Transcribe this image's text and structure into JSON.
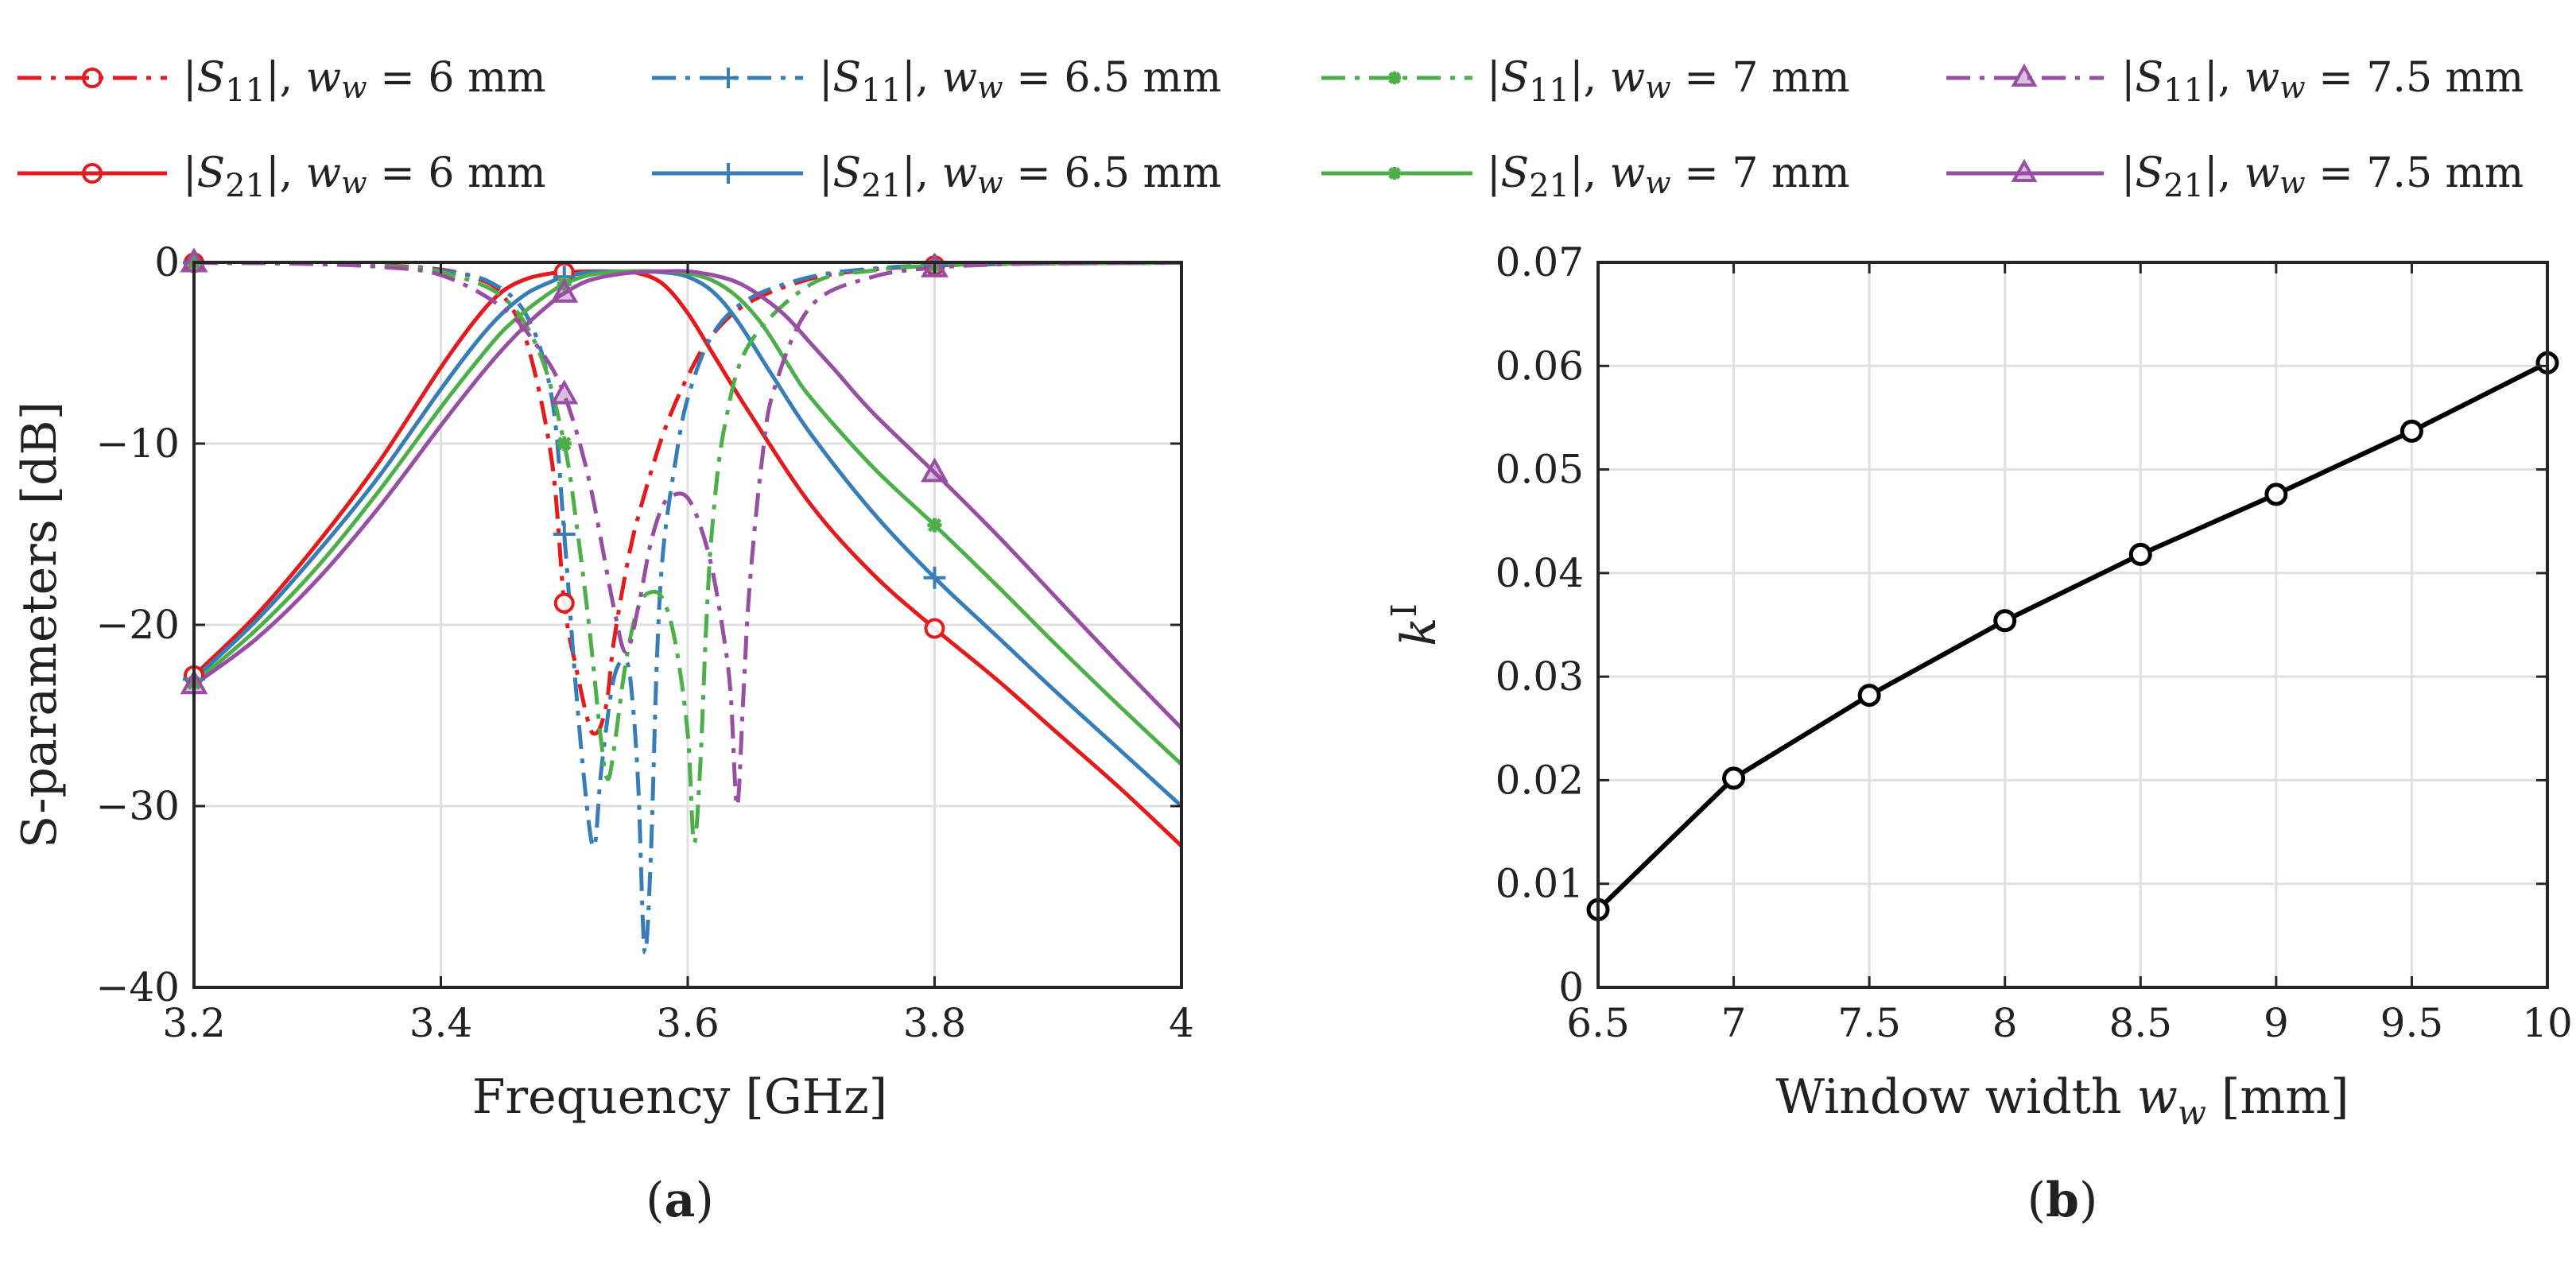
{
  "colors": {
    "w6": "#e41a1c",
    "w6_5": "#377eb8",
    "w7": "#4daf4a",
    "w7_5": "#984ea3",
    "black": "#000000",
    "axis": "#262626",
    "grid": "#e0e0e0"
  },
  "legend": {
    "s11_w6": "|S11|, ww = 6 mm",
    "s11_w6_5": "|S11|, ww = 6.5 mm",
    "s11_w7": "|S11|, ww = 7 mm",
    "s11_w7_5": "|S11|, ww = 7.5 mm",
    "s21_w6": "|S21|, ww = 6 mm",
    "s21_w6_5": "|S21|, ww = 6.5 mm",
    "s21_w7": "|S21|, ww = 7 mm",
    "s21_w7_5": "|S21|, ww = 7.5 mm"
  },
  "legend_parts": {
    "pipe": "|",
    "S": "S",
    "sub11": "11",
    "sub21": "21",
    "sep": "|, ",
    "w": "w",
    "wsub": "w",
    "eq": " = ",
    "unit": " mm",
    "v6": "6",
    "v6_5": "6.5",
    "v7": "7",
    "v7_5": "7.5"
  },
  "captions": {
    "a_open": "(",
    "a_letter": "a",
    "a_close": ")",
    "b_open": "(",
    "b_letter": "b",
    "b_close": ")"
  },
  "chart_data": [
    {
      "id": "a",
      "type": "line",
      "xlabel": "Frequency [GHz]",
      "ylabel": "S-parameters [dB]",
      "xlim": [
        3.2,
        4.0
      ],
      "ylim": [
        -40,
        0
      ],
      "xticks": [
        3.2,
        3.4,
        3.6,
        3.8,
        4.0
      ],
      "xtick_labels": [
        "3.2",
        "3.4",
        "3.6",
        "3.8",
        "4"
      ],
      "yticks": [
        -40,
        -30,
        -20,
        -10,
        0
      ],
      "ytick_labels": [
        "−40",
        "−30",
        "−20",
        "−10",
        "0"
      ],
      "grid": true,
      "legend_position": "top",
      "series": [
        {
          "name": "|S11|, ww = 6 mm",
          "width_mm": 6,
          "param": "S11",
          "style": "dashdot",
          "marker": "circle",
          "color": "#e41a1c",
          "x": [
            3.2,
            3.25,
            3.3,
            3.35,
            3.4,
            3.43,
            3.45,
            3.47,
            3.49,
            3.5,
            3.51,
            3.52,
            3.525,
            3.53,
            3.535,
            3.54,
            3.55,
            3.56,
            3.58,
            3.6,
            3.62,
            3.65,
            3.7,
            3.75,
            3.8,
            3.85,
            3.9,
            4.0
          ],
          "y": [
            -0.02,
            -0.04,
            -0.07,
            -0.15,
            -0.4,
            -0.9,
            -1.8,
            -4.5,
            -11,
            -18.8,
            -22.5,
            -25.5,
            -26,
            -25.5,
            -24,
            -21,
            -17,
            -14,
            -9.5,
            -6.3,
            -4,
            -2.2,
            -0.9,
            -0.4,
            -0.18,
            -0.1,
            -0.06,
            -0.02
          ],
          "marker_x": [
            3.2,
            3.5,
            3.8
          ]
        },
        {
          "name": "|S21|, ww = 6 mm",
          "width_mm": 6,
          "param": "S21",
          "style": "solid",
          "marker": "circle",
          "color": "#e41a1c",
          "x": [
            3.2,
            3.25,
            3.3,
            3.35,
            3.4,
            3.43,
            3.45,
            3.47,
            3.49,
            3.5,
            3.52,
            3.54,
            3.56,
            3.58,
            3.6,
            3.62,
            3.65,
            3.7,
            3.75,
            3.8,
            3.85,
            3.9,
            3.95,
            4.0
          ],
          "y": [
            -22.8,
            -19.5,
            -15.5,
            -11,
            -5.8,
            -3,
            -1.6,
            -0.9,
            -0.6,
            -0.55,
            -0.5,
            -0.5,
            -0.6,
            -1.2,
            -2.8,
            -5,
            -8.3,
            -13.4,
            -17.2,
            -20.2,
            -23,
            -26,
            -29,
            -32.2
          ],
          "marker_x": [
            3.2,
            3.5,
            3.8
          ]
        },
        {
          "name": "|S11|, ww = 6.5 mm",
          "width_mm": 6.5,
          "param": "S11",
          "style": "dashdot",
          "marker": "plus",
          "color": "#377eb8",
          "x": [
            3.2,
            3.25,
            3.3,
            3.35,
            3.4,
            3.44,
            3.47,
            3.49,
            3.5,
            3.51,
            3.52,
            3.525,
            3.53,
            3.54,
            3.55,
            3.555,
            3.56,
            3.565,
            3.57,
            3.575,
            3.58,
            3.59,
            3.6,
            3.62,
            3.65,
            3.7,
            3.75,
            3.8,
            3.85,
            3.9,
            4.0
          ],
          "y": [
            -0.02,
            -0.04,
            -0.08,
            -0.18,
            -0.45,
            -1.1,
            -3,
            -7.5,
            -15,
            -24,
            -31,
            -32,
            -28,
            -23,
            -22,
            -24,
            -29,
            -38,
            -33,
            -22,
            -16,
            -11,
            -7.5,
            -4,
            -2,
            -0.8,
            -0.35,
            -0.15,
            -0.08,
            -0.05,
            -0.02
          ],
          "marker_x": [
            3.2,
            3.5,
            3.8
          ]
        },
        {
          "name": "|S21|, ww = 6.5 mm",
          "width_mm": 6.5,
          "param": "S21",
          "style": "solid",
          "marker": "plus",
          "color": "#377eb8",
          "x": [
            3.2,
            3.25,
            3.3,
            3.35,
            3.4,
            3.43,
            3.45,
            3.47,
            3.49,
            3.5,
            3.52,
            3.55,
            3.58,
            3.6,
            3.62,
            3.64,
            3.67,
            3.7,
            3.75,
            3.8,
            3.85,
            3.9,
            3.95,
            4.0
          ],
          "y": [
            -23,
            -19.8,
            -16,
            -11.8,
            -7,
            -4.3,
            -2.8,
            -1.7,
            -1.05,
            -0.8,
            -0.55,
            -0.5,
            -0.55,
            -0.8,
            -1.6,
            -3.2,
            -6.4,
            -9.5,
            -13.8,
            -17.4,
            -20.6,
            -23.8,
            -26.9,
            -30
          ],
          "marker_x": [
            3.2,
            3.5,
            3.8
          ]
        },
        {
          "name": "|S11|, ww = 7 mm",
          "width_mm": 7,
          "param": "S11",
          "style": "dashdot",
          "marker": "asterisk",
          "color": "#4daf4a",
          "x": [
            3.2,
            3.25,
            3.3,
            3.35,
            3.4,
            3.45,
            3.48,
            3.5,
            3.51,
            3.52,
            3.53,
            3.535,
            3.54,
            3.55,
            3.56,
            3.57,
            3.58,
            3.59,
            3.6,
            3.605,
            3.61,
            3.615,
            3.62,
            3.63,
            3.65,
            3.7,
            3.75,
            3.8,
            3.85,
            3.9,
            4.0
          ],
          "y": [
            -0.02,
            -0.04,
            -0.08,
            -0.2,
            -0.55,
            -1.9,
            -5,
            -10,
            -14.5,
            -20,
            -26.5,
            -28.5,
            -27,
            -22,
            -19,
            -18.2,
            -18.6,
            -21,
            -26,
            -32,
            -28,
            -20,
            -14.5,
            -9,
            -4.5,
            -1.2,
            -0.45,
            -0.18,
            -0.09,
            -0.05,
            -0.02
          ],
          "marker_x": [
            3.2,
            3.5,
            3.8
          ]
        },
        {
          "name": "|S21|, ww = 7 mm",
          "width_mm": 7,
          "param": "S21",
          "style": "solid",
          "marker": "asterisk",
          "color": "#4daf4a",
          "x": [
            3.2,
            3.25,
            3.3,
            3.35,
            3.4,
            3.43,
            3.45,
            3.47,
            3.49,
            3.5,
            3.52,
            3.55,
            3.58,
            3.6,
            3.62,
            3.64,
            3.66,
            3.68,
            3.7,
            3.75,
            3.8,
            3.85,
            3.9,
            3.95,
            4.0
          ],
          "y": [
            -23.2,
            -20.3,
            -16.8,
            -12.6,
            -8,
            -5.4,
            -3.8,
            -2.6,
            -1.6,
            -1.2,
            -0.7,
            -0.5,
            -0.5,
            -0.6,
            -1,
            -1.9,
            -3.4,
            -5.5,
            -7.5,
            -11.3,
            -14.5,
            -17.8,
            -21.2,
            -24.5,
            -27.7
          ],
          "marker_x": [
            3.2,
            3.5,
            3.8
          ]
        },
        {
          "name": "|S11|, ww = 7.5 mm",
          "width_mm": 7.5,
          "param": "S11",
          "style": "dashdot",
          "marker": "triangle",
          "color": "#984ea3",
          "x": [
            3.2,
            3.25,
            3.3,
            3.35,
            3.4,
            3.45,
            3.48,
            3.5,
            3.52,
            3.54,
            3.55,
            3.56,
            3.57,
            3.58,
            3.59,
            3.6,
            3.61,
            3.62,
            3.63,
            3.635,
            3.64,
            3.645,
            3.65,
            3.66,
            3.67,
            3.7,
            3.75,
            3.8,
            3.85,
            3.9,
            4.0
          ],
          "y": [
            -0.02,
            -0.04,
            -0.1,
            -0.25,
            -0.7,
            -2.5,
            -4.8,
            -7.3,
            -12,
            -19,
            -21.5,
            -19,
            -15.5,
            -13.4,
            -12.8,
            -13,
            -14.5,
            -17,
            -21,
            -24,
            -30,
            -24,
            -18,
            -11,
            -7,
            -2.4,
            -0.8,
            -0.3,
            -0.12,
            -0.06,
            -0.02
          ],
          "marker_x": [
            3.2,
            3.5,
            3.8
          ]
        },
        {
          "name": "|S21|, ww = 7.5 mm",
          "width_mm": 7.5,
          "param": "S21",
          "style": "solid",
          "marker": "triangle",
          "color": "#984ea3",
          "x": [
            3.2,
            3.25,
            3.3,
            3.35,
            3.4,
            3.43,
            3.45,
            3.47,
            3.49,
            3.5,
            3.52,
            3.55,
            3.58,
            3.6,
            3.62,
            3.64,
            3.66,
            3.68,
            3.7,
            3.72,
            3.75,
            3.8,
            3.85,
            3.9,
            3.95,
            4.0
          ],
          "y": [
            -23.3,
            -20.8,
            -17.5,
            -13.5,
            -9,
            -6.4,
            -4.8,
            -3.4,
            -2.2,
            -1.7,
            -1,
            -0.6,
            -0.5,
            -0.5,
            -0.7,
            -1.1,
            -1.9,
            -3,
            -4.5,
            -6,
            -8.3,
            -11.6,
            -15,
            -18.6,
            -22.2,
            -25.7
          ],
          "marker_x": [
            3.2,
            3.5,
            3.8
          ]
        }
      ]
    },
    {
      "id": "b",
      "type": "line",
      "xlabel": "Window width ww [mm]",
      "xlabel_parts": {
        "main": "Window width ",
        "var": "w",
        "sub": "w",
        "unit": " [mm]"
      },
      "ylabel": "kI",
      "ylabel_parts": {
        "main": "k",
        "sup": "I"
      },
      "xlim": [
        6.5,
        10
      ],
      "ylim": [
        0,
        0.07
      ],
      "xticks": [
        6.5,
        7,
        7.5,
        8,
        8.5,
        9,
        9.5,
        10
      ],
      "xtick_labels": [
        "6.5",
        "7",
        "7.5",
        "8",
        "8.5",
        "9",
        "9.5",
        "10"
      ],
      "yticks": [
        0,
        0.01,
        0.02,
        0.03,
        0.04,
        0.05,
        0.06,
        0.07
      ],
      "ytick_labels": [
        "0",
        "0.01",
        "0.02",
        "0.03",
        "0.04",
        "0.05",
        "0.06",
        "0.07"
      ],
      "grid": true,
      "series": [
        {
          "name": "kI",
          "marker": "circle",
          "color": "#000000",
          "x": [
            6.5,
            7,
            7.5,
            8,
            8.5,
            9,
            9.5,
            10
          ],
          "y": [
            0.0075,
            0.0202,
            0.0282,
            0.0354,
            0.0418,
            0.0476,
            0.0537,
            0.0603
          ]
        }
      ]
    }
  ]
}
